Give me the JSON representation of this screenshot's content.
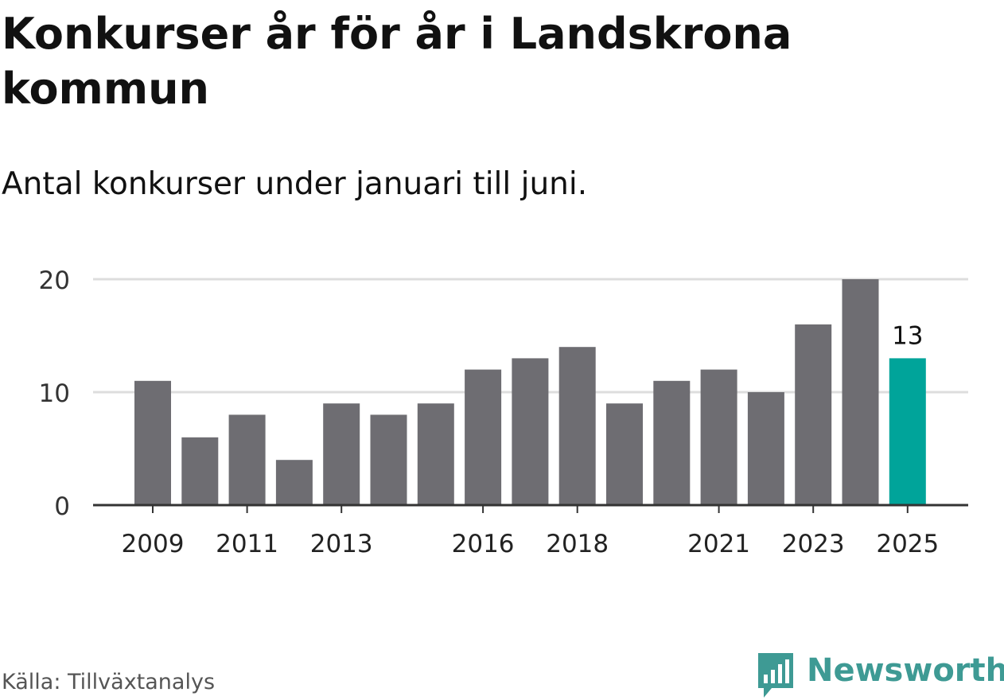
{
  "title": "Konkurser år för år i Landskrona kommun",
  "subtitle": "Antal konkurser under januari till juni.",
  "source": "Källa: Tillväxtanalys",
  "brand": {
    "name": "Newsworthy",
    "color": "#3e9a94",
    "icon": "bar-chart-speech-bubble-icon"
  },
  "colors": {
    "bar": "#6e6d72",
    "highlight": "#00a49a",
    "grid": "#dddddd",
    "axis": "#333333"
  },
  "chart_data": {
    "type": "bar",
    "categories": [
      "2009",
      "2010",
      "2011",
      "2012",
      "2013",
      "2014",
      "2015",
      "2016",
      "2017",
      "2018",
      "2019",
      "2020",
      "2021",
      "2022",
      "2023",
      "2024",
      "2025"
    ],
    "values": [
      11,
      6,
      8,
      4,
      9,
      8,
      9,
      12,
      13,
      14,
      9,
      11,
      12,
      10,
      16,
      20,
      13
    ],
    "highlight_index": 16,
    "data_labels": [
      {
        "index": 16,
        "text": "13"
      }
    ],
    "ylim": [
      0,
      20
    ],
    "yticks": [
      0,
      10,
      20
    ],
    "xtick_labels": [
      "2009",
      "2011",
      "2013",
      "2016",
      "2018",
      "2021",
      "2023",
      "2025"
    ],
    "grid": true,
    "xlabel": "",
    "ylabel": ""
  }
}
